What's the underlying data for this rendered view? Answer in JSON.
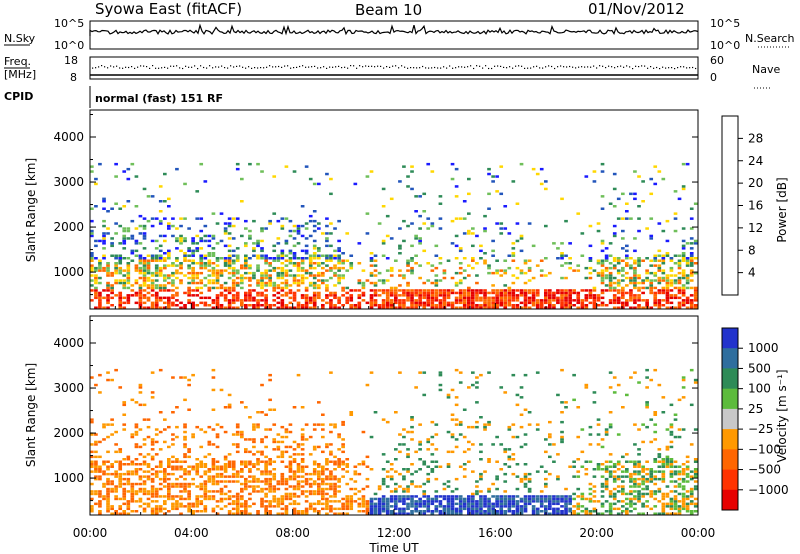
{
  "header": {
    "title": "Syowa East (fitACF)",
    "beam": "Beam 10",
    "date": "01/Nov/2012"
  },
  "status": {
    "nsky_label": "N.Sky",
    "nsearch_label": "N.Search",
    "nsky_ticks": [
      "10^5",
      "10^0"
    ],
    "nsky_right_ticks": [
      "10^5",
      "10^0"
    ],
    "freq_label": "Freq.",
    "freq_unit": "[MHz]",
    "freq_ticks": [
      "18",
      "8"
    ],
    "nave_label": "Nave",
    "nave_ticks": [
      "60",
      "0"
    ],
    "cpid_label": "CPID",
    "cpid_value": "normal (fast) 151 RF"
  },
  "colors": {
    "power": [
      "#1a1aff",
      "#2255bb",
      "#2e8b57",
      "#6fbf5a",
      "#ffd700",
      "#ffa500",
      "#ff6a00",
      "#ff3300",
      "#e60000"
    ],
    "velocity_positive": [
      "#2233cc",
      "#2f6e9e",
      "#2e8b57",
      "#5dbb3c"
    ],
    "velocity_mid": "#c8c8c8",
    "velocity_negative": [
      "#ff9900",
      "#ff6600",
      "#ff3300",
      "#e60000"
    ],
    "axis": "#000000"
  },
  "chart_data": [
    {
      "type": "heatmap",
      "title": "",
      "xlabel": "",
      "ylabel": "Slant Range [km]",
      "xlim": [
        "00:00",
        "00:00"
      ],
      "ylim": [
        180,
        4600
      ],
      "yticks": [
        "1000",
        "2000",
        "3000",
        "4000"
      ],
      "colorbar": {
        "label": "Power [dB]",
        "min": 0,
        "max": 32,
        "ticks": [
          "4",
          "8",
          "12",
          "16",
          "20",
          "24",
          "28"
        ]
      }
    },
    {
      "type": "heatmap",
      "title": "",
      "xlabel": "Time UT",
      "ylabel": "Slant Range [km]",
      "xticks": [
        "00:00",
        "04:00",
        "08:00",
        "12:00",
        "16:00",
        "20:00",
        "00:00"
      ],
      "xlim": [
        "00:00",
        "00:00"
      ],
      "ylim": [
        180,
        4600
      ],
      "yticks": [
        "1000",
        "2000",
        "3000",
        "4000"
      ],
      "colorbar": {
        "label": "Velocity [m s⁻¹]",
        "ticks": [
          "1000",
          "500",
          "100",
          "25",
          "−25",
          "−100",
          "−500",
          "−1000"
        ]
      }
    }
  ]
}
